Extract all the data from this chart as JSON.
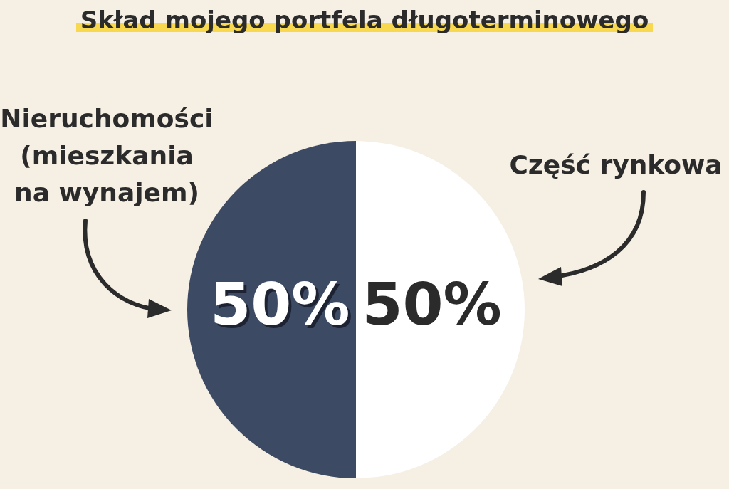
{
  "chart_data": {
    "type": "pie",
    "title": "Skład mojego portfela długoterminowego",
    "categories": [
      "Nieruchomości\n(mieszkania\nna wynajem)",
      "Część rynkowa"
    ],
    "values": [
      50,
      50
    ],
    "colors": [
      "#3d4a63",
      "#ffffff"
    ],
    "value_labels": [
      "50%",
      "50%"
    ]
  }
}
